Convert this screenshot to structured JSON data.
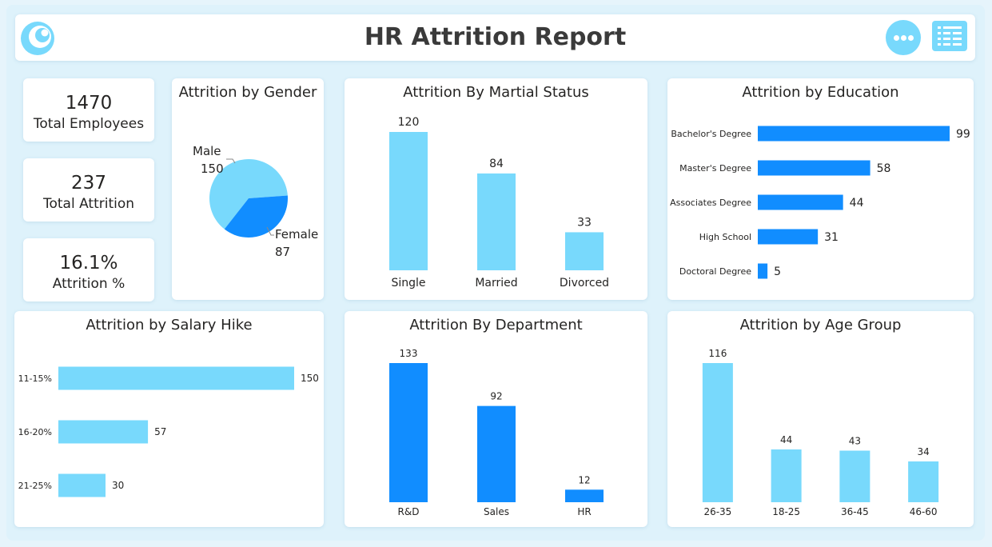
{
  "header": {
    "title": "HR Attrition Report"
  },
  "icons": {
    "logo": "logo-icon",
    "more": "more-options-icon",
    "grid": "grid-menu-icon"
  },
  "colors": {
    "light": "#78d9fc",
    "dark": "#118dff"
  },
  "kpis": [
    {
      "value": "1470",
      "label": "Total Employees"
    },
    {
      "value": "237",
      "label": "Total Attrition"
    },
    {
      "value": "16.1%",
      "label": "Attrition %"
    }
  ],
  "charts": {
    "gender": {
      "title": "Attrition by Gender"
    },
    "marital": {
      "title": "Attrition By Martial Status"
    },
    "education": {
      "title": "Attrition by Education"
    },
    "salary": {
      "title": "Attrition by Salary Hike"
    },
    "department": {
      "title": "Attrition By Department"
    },
    "age": {
      "title": "Attrition by Age Group"
    }
  },
  "chart_data": [
    {
      "id": "gender",
      "type": "pie",
      "title": "Attrition by Gender",
      "categories": [
        "Male",
        "Female"
      ],
      "values": [
        150,
        87
      ]
    },
    {
      "id": "marital",
      "type": "bar",
      "title": "Attrition By Martial Status",
      "categories": [
        "Single",
        "Married",
        "Divorced"
      ],
      "values": [
        120,
        84,
        33
      ]
    },
    {
      "id": "education",
      "type": "bar",
      "orientation": "horizontal",
      "title": "Attrition by Education",
      "categories": [
        "Bachelor's Degree",
        "Master's Degree",
        "Associates Degree",
        "High School",
        "Doctoral Degree"
      ],
      "values": [
        99,
        58,
        44,
        31,
        5
      ]
    },
    {
      "id": "salary",
      "type": "bar",
      "orientation": "horizontal",
      "title": "Attrition by Salary Hike",
      "categories": [
        "11-15%",
        "16-20%",
        "21-25%"
      ],
      "values": [
        150,
        57,
        30
      ]
    },
    {
      "id": "department",
      "type": "bar",
      "title": "Attrition By Department",
      "categories": [
        "R&D",
        "Sales",
        "HR"
      ],
      "values": [
        133,
        92,
        12
      ]
    },
    {
      "id": "age",
      "type": "bar",
      "title": "Attrition by Age Group",
      "categories": [
        "26-35",
        "18-25",
        "36-45",
        "46-60"
      ],
      "values": [
        116,
        44,
        43,
        34
      ]
    }
  ]
}
